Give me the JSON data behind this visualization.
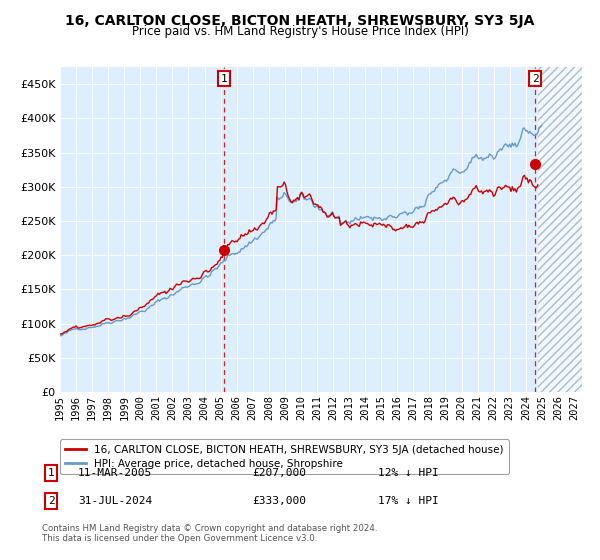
{
  "title": "16, CARLTON CLOSE, BICTON HEATH, SHREWSBURY, SY3 5JA",
  "subtitle": "Price paid vs. HM Land Registry's House Price Index (HPI)",
  "ylim": [
    0,
    475000
  ],
  "yticks": [
    0,
    50000,
    100000,
    150000,
    200000,
    250000,
    300000,
    350000,
    400000,
    450000
  ],
  "xlim_start": 1995.0,
  "xlim_end": 2027.5,
  "future_start": 2024.75,
  "sale1_date": 2005.19,
  "sale1_price": 207000,
  "sale1_label": "1",
  "sale1_text": "11-MAR-2005",
  "sale1_pct": "12% ↓ HPI",
  "sale2_date": 2024.58,
  "sale2_price": 333000,
  "sale2_label": "2",
  "sale2_text": "31-JUL-2024",
  "sale2_pct": "17% ↓ HPI",
  "hpi_color": "#6699cc",
  "price_color": "#cc0000",
  "bg_color": "#ddeeff",
  "legend_label1": "16, CARLTON CLOSE, BICTON HEATH, SHREWSBURY, SY3 5JA (detached house)",
  "legend_label2": "HPI: Average price, detached house, Shropshire",
  "footer1": "Contains HM Land Registry data © Crown copyright and database right 2024.",
  "footer2": "This data is licensed under the Open Government Licence v3.0."
}
